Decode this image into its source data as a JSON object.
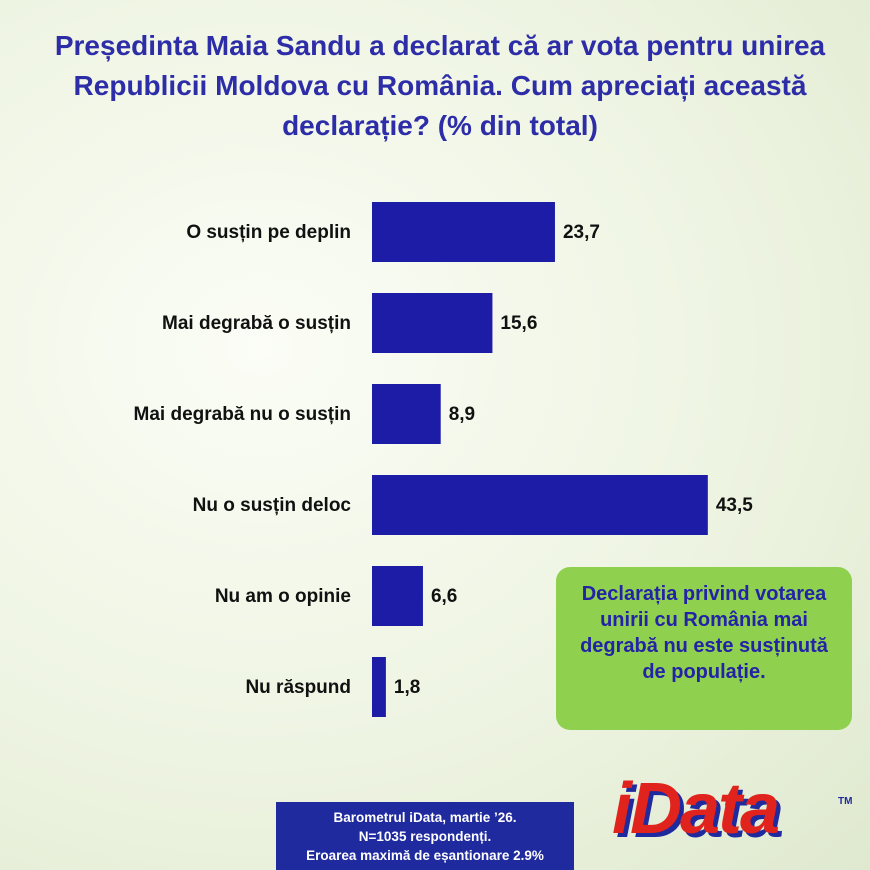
{
  "chart_data": {
    "type": "bar",
    "orientation": "horizontal",
    "title": "Președinta Maia Sandu a declarat că ar vota pentru unirea Republicii Moldova cu România. Cum apreciați această declarație? (% din total)",
    "categories": [
      "O susțin pe deplin",
      "Mai degrabă o susțin",
      "Mai degrabă nu o susțin",
      "Nu o susțin deloc",
      "Nu am o opinie",
      "Nu răspund"
    ],
    "values": [
      23.7,
      15.6,
      8.9,
      43.5,
      6.6,
      1.8
    ],
    "value_labels": [
      "23,7",
      "15,6",
      "8,9",
      "43,5",
      "6,6",
      "1,8"
    ],
    "color": "#1c1ca6",
    "annotation": "Declarația privind votarea unirii cu România mai degrabă nu este susținută de populație.",
    "source": [
      "Barometrul iData, martie ’26.",
      "N=1035 respondenți.",
      "Eroarea maximă de eșantionare 2.9%"
    ],
    "logo": "iData",
    "logo_mark": "TM"
  }
}
